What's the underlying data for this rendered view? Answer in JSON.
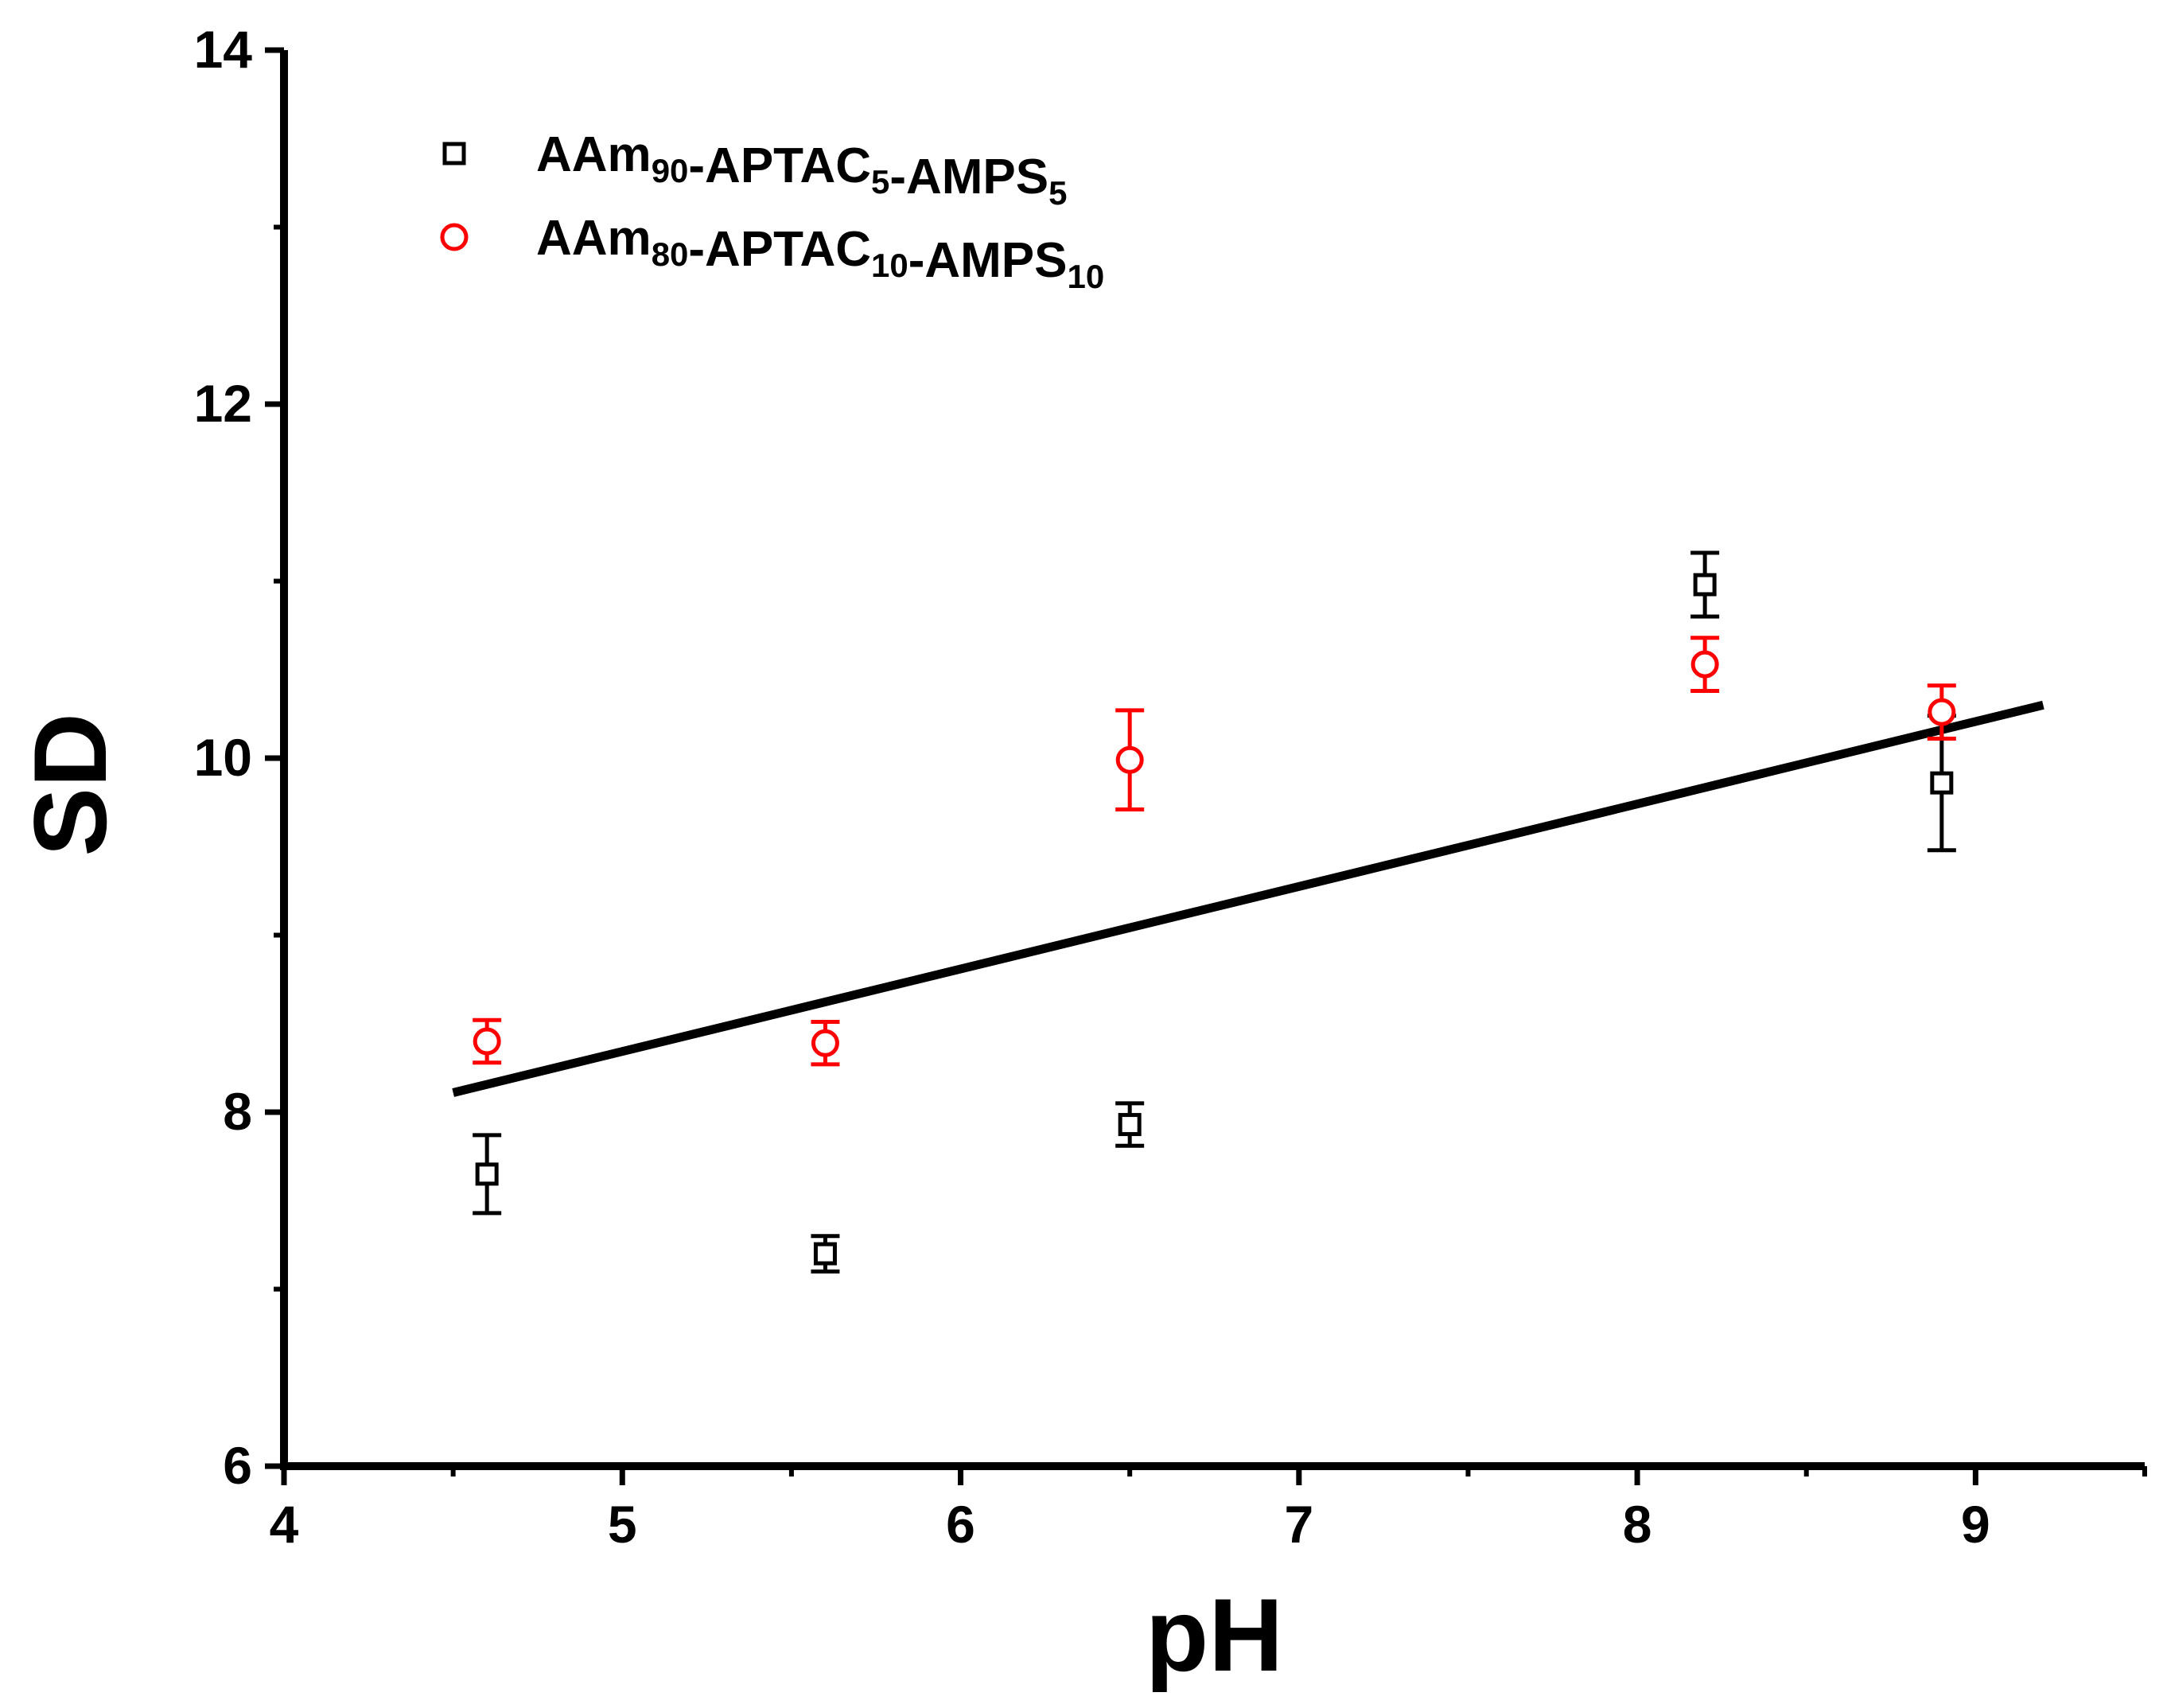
{
  "chart_data": {
    "type": "scatter",
    "title": "",
    "xlabel": "pH",
    "ylabel": "SD",
    "xlim": [
      4,
      9.5
    ],
    "ylim": [
      6,
      14
    ],
    "x_ticks": [
      4,
      5,
      6,
      7,
      8,
      9
    ],
    "y_ticks": [
      6,
      8,
      10,
      12,
      14
    ],
    "x_tick_labels": [
      "4",
      "5",
      "6",
      "7",
      "8",
      "9"
    ],
    "y_tick_labels": [
      "6",
      "8",
      "10",
      "12",
      "14"
    ],
    "grid": false,
    "legend_position": "top-left",
    "series": [
      {
        "name": "AAm90-APTAC5-AMPS5",
        "name_parts": [
          {
            "text": "AAm",
            "sub": false
          },
          {
            "text": "90",
            "sub": true
          },
          {
            "text": "-APTAC",
            "sub": false
          },
          {
            "text": "5",
            "sub": true
          },
          {
            "text": "-AMPS",
            "sub": false
          },
          {
            "text": "5",
            "sub": true
          }
        ],
        "marker": "square",
        "color": "#000000",
        "points": [
          {
            "x": 4.6,
            "y": 7.65,
            "err": 0.22
          },
          {
            "x": 5.6,
            "y": 7.2,
            "err": 0.1
          },
          {
            "x": 6.5,
            "y": 7.93,
            "err": 0.12
          },
          {
            "x": 8.2,
            "y": 10.98,
            "err": 0.18
          },
          {
            "x": 8.9,
            "y": 9.86,
            "err": 0.38
          }
        ]
      },
      {
        "name": "AAm80-APTAC10-AMPS10",
        "name_parts": [
          {
            "text": "AAm",
            "sub": false
          },
          {
            "text": "80",
            "sub": true
          },
          {
            "text": "-APTAC",
            "sub": false
          },
          {
            "text": "10",
            "sub": true
          },
          {
            "text": "-AMPS",
            "sub": false
          },
          {
            "text": "10",
            "sub": true
          }
        ],
        "marker": "circle",
        "color": "#ff0000",
        "points": [
          {
            "x": 4.6,
            "y": 8.4,
            "err": 0.12
          },
          {
            "x": 5.6,
            "y": 8.39,
            "err": 0.12
          },
          {
            "x": 6.5,
            "y": 9.99,
            "err": 0.28
          },
          {
            "x": 8.2,
            "y": 10.53,
            "err": 0.15
          },
          {
            "x": 8.9,
            "y": 10.26,
            "err": 0.15
          }
        ]
      }
    ],
    "fit_line": {
      "color": "#000000",
      "points": [
        {
          "x": 4.5,
          "y": 8.11
        },
        {
          "x": 9.2,
          "y": 10.3
        }
      ]
    }
  }
}
